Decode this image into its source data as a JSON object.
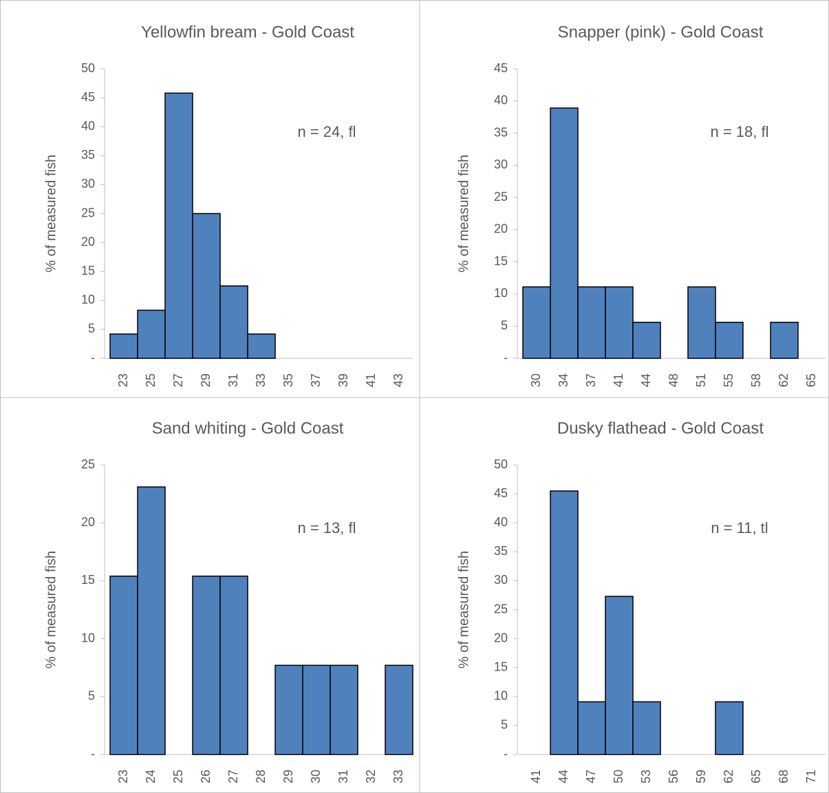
{
  "chart_data": [
    {
      "type": "bar",
      "title": "Yellowfin bream - Gold Coast",
      "annotation": "n = 24, fl",
      "y_label": "% of measured fish",
      "categories": [
        "23",
        "25",
        "27",
        "29",
        "31",
        "33",
        "35",
        "37",
        "39",
        "41",
        "43"
      ],
      "values": [
        4.2,
        8.3,
        45.8,
        25,
        12.5,
        4.2,
        0,
        0,
        0,
        0,
        0
      ],
      "color": "#4f81bd",
      "ylim": [
        0,
        50
      ],
      "yticks": [
        {
          "value": 0,
          "label": "-"
        },
        5,
        10,
        15,
        20,
        25,
        30,
        35,
        40,
        45,
        50
      ]
    },
    {
      "type": "bar",
      "title": "Snapper (pink) - Gold Coast",
      "annotation": "n = 18, fl",
      "y_label": "% of measured fish",
      "categories": [
        "30",
        "34",
        "37",
        "41",
        "44",
        "48",
        "51",
        "55",
        "58",
        "62",
        "65"
      ],
      "values": [
        11.1,
        38.9,
        11.1,
        11.1,
        5.6,
        0,
        11.1,
        5.6,
        0,
        5.6,
        0
      ],
      "color": "#4f81bd",
      "ylim": [
        0,
        45
      ],
      "yticks": [
        {
          "value": 0,
          "label": "-"
        },
        5,
        10,
        15,
        20,
        25,
        30,
        35,
        40,
        45
      ]
    },
    {
      "type": "bar",
      "title": "Sand whiting - Gold Coast",
      "annotation": "n = 13, fl",
      "y_label": "% of measured fish",
      "categories": [
        "23",
        "24",
        "25",
        "26",
        "27",
        "28",
        "29",
        "30",
        "31",
        "32",
        "33"
      ],
      "values": [
        15.4,
        23.1,
        0,
        15.4,
        15.4,
        0,
        7.7,
        7.7,
        7.7,
        0,
        7.7
      ],
      "color": "#4f81bd",
      "ylim": [
        0,
        25
      ],
      "yticks": [
        {
          "value": 0,
          "label": "-"
        },
        5,
        10,
        15,
        20,
        25
      ]
    },
    {
      "type": "bar",
      "title": "Dusky flathead - Gold Coast",
      "annotation": "n = 11, tl",
      "y_label": "% of measured fish",
      "categories": [
        "41",
        "44",
        "47",
        "50",
        "53",
        "56",
        "59",
        "62",
        "65",
        "68",
        "71"
      ],
      "values": [
        0,
        45.5,
        9.1,
        27.3,
        9.1,
        0,
        0,
        9.1,
        0,
        0,
        0
      ],
      "color": "#4f81bd",
      "ylim": [
        0,
        50
      ],
      "yticks": [
        {
          "value": 0,
          "label": "-"
        },
        5,
        10,
        15,
        20,
        25,
        30,
        35,
        40,
        45,
        50
      ]
    }
  ]
}
